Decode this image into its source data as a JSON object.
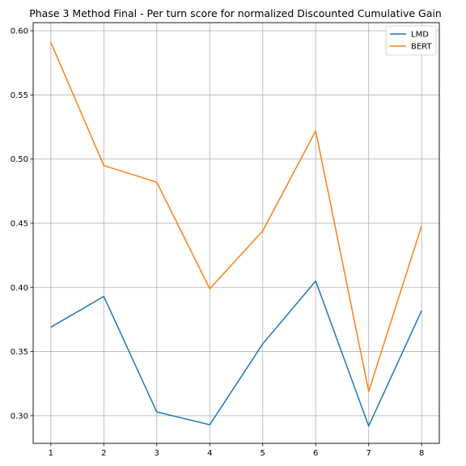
{
  "chart_data": {
    "type": "line",
    "title": "Phase 3 Method Final - Per turn score for normalized Discounted Cumulative Gain",
    "xlabel": "",
    "ylabel": "",
    "x": [
      1,
      2,
      3,
      4,
      5,
      6,
      7,
      8
    ],
    "x_ticks": [
      "1",
      "2",
      "3",
      "4",
      "5",
      "6",
      "7",
      "8"
    ],
    "y_ticks": [
      "0.30",
      "0.35",
      "0.40",
      "0.45",
      "0.50",
      "0.55",
      "0.60"
    ],
    "xlim": [
      0.667,
      8.333
    ],
    "ylim": [
      0.2785,
      0.6063
    ],
    "grid": true,
    "legend_position": "top-right",
    "series": [
      {
        "name": "LMD",
        "color": "#1f77b4",
        "values": [
          0.369,
          0.393,
          0.303,
          0.293,
          0.356,
          0.405,
          0.292,
          0.382
        ]
      },
      {
        "name": "BERT",
        "color": "#ff7f0e",
        "values": [
          0.591,
          0.495,
          0.482,
          0.399,
          0.444,
          0.522,
          0.319,
          0.448
        ]
      }
    ]
  }
}
